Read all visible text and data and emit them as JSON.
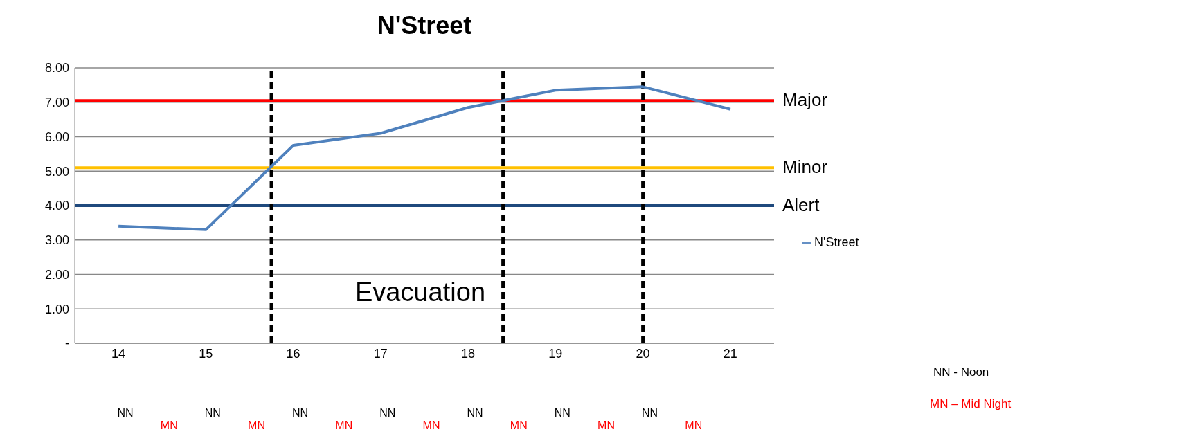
{
  "chart_data": {
    "type": "line",
    "title": "N'Street",
    "x": [
      14,
      15,
      16,
      17,
      18,
      19,
      20,
      21
    ],
    "series": [
      {
        "name": "N'Street",
        "color": "#4f81bd",
        "values": [
          3.4,
          3.3,
          5.75,
          6.1,
          6.85,
          7.35,
          7.45,
          6.8
        ]
      }
    ],
    "xlim": [
      13.5,
      21.5
    ],
    "xticks": [
      14,
      15,
      16,
      17,
      18,
      19,
      20,
      21
    ],
    "ylim": [
      0,
      8
    ],
    "yticks": [
      {
        "value": 0,
        "label": "-"
      },
      {
        "value": 1,
        "label": "1.00"
      },
      {
        "value": 2,
        "label": "2.00"
      },
      {
        "value": 3,
        "label": "3.00"
      },
      {
        "value": 4,
        "label": "4.00"
      },
      {
        "value": 5,
        "label": "5.00"
      },
      {
        "value": 6,
        "label": "6.00"
      },
      {
        "value": 7,
        "label": "7.00"
      },
      {
        "value": 8,
        "label": "8.00"
      }
    ],
    "grid": "y",
    "legend": "right",
    "marker": "none",
    "line_style": "solid",
    "ref_lines": [
      {
        "axis": "y",
        "value": 7.05,
        "label": "Major",
        "color": "#ff0000"
      },
      {
        "axis": "y",
        "value": 5.1,
        "label": "Minor",
        "color": "#ffc000"
      },
      {
        "axis": "y",
        "value": 4.0,
        "label": "Alert",
        "color": "#1f497d"
      },
      {
        "axis": "x",
        "value": 15.75,
        "color": "#000000",
        "line_style": "dashed"
      },
      {
        "axis": "x",
        "value": 18.4,
        "color": "#000000",
        "line_style": "dashed"
      },
      {
        "axis": "x",
        "value": 20,
        "color": "#000000",
        "line_style": "dashed"
      }
    ],
    "annotations": [
      "Evacuation",
      "NN - Noon",
      "MN – Mid Night",
      "NN",
      "MN",
      "NN",
      "MN",
      "NN",
      "MN",
      "NN",
      "MN",
      "NN",
      "MN",
      "NN",
      "MN",
      "NN",
      "MN"
    ]
  }
}
